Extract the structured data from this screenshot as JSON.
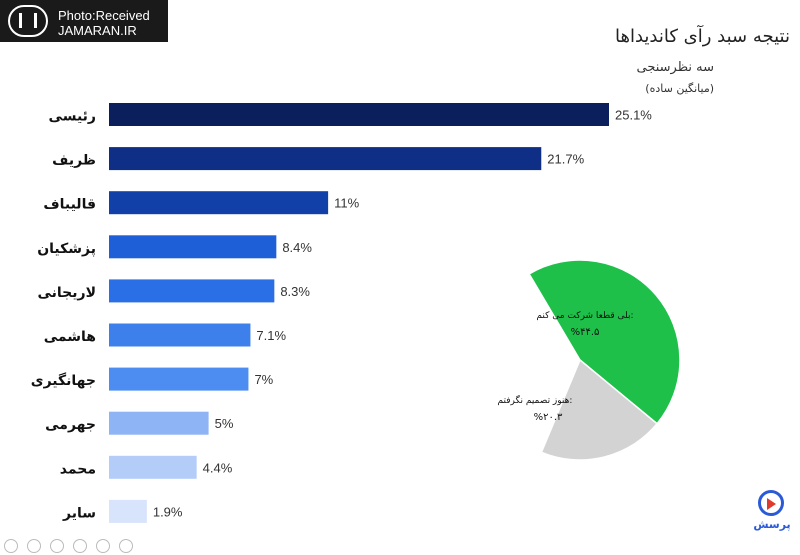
{
  "source_badge": {
    "line1": "Photo:Received",
    "line2": "JAMARAN.IR"
  },
  "brand_text": "پرسش",
  "toolbar_icons": [
    "back-icon",
    "play-icon",
    "forward-icon",
    "copy-icon",
    "expand-icon",
    "options-icon"
  ],
  "chart_data": [
    {
      "type": "bar",
      "orientation": "horizontal",
      "title": "نتیجه سبد رآی کاندیداها",
      "subtitle": "سه نظرسنجی",
      "note": "(میانگین ساده)",
      "categories": [
        "رئیسی",
        "ظریف",
        "قالیباف",
        "پزشکیان",
        "لاریجانی",
        "هاشمی",
        "جهانگیری",
        "جهرمی",
        "محمد",
        "سایر"
      ],
      "values": [
        25.1,
        21.7,
        11,
        8.4,
        8.3,
        7.1,
        7,
        5,
        4.4,
        1.9
      ],
      "value_labels": [
        "25.1%",
        "21.7%",
        "11%",
        "8.4%",
        "8.3%",
        "7.1%",
        "7%",
        "5%",
        "4.4%",
        "1.9%"
      ],
      "colors": [
        "#0a1f5c",
        "#0e2f85",
        "#1140a8",
        "#1e5fd8",
        "#2a6fe6",
        "#3d80ec",
        "#4d8cf0",
        "#8fb4f5",
        "#b3cdf8",
        "#d7e4fb"
      ],
      "xlim": [
        0,
        25.1
      ],
      "grid": false
    },
    {
      "type": "pie",
      "slices": [
        {
          "label": "بلی قطعا شرکت می کنم:",
          "value_label": "%۴۴.۵",
          "value": 44.5,
          "color": "#1ec04a"
        },
        {
          "label": "هنوز تصمیم نگرفتم:",
          "value_label": "%۲۰.۳",
          "value": 20.3,
          "color": "#d3d3d3"
        }
      ]
    }
  ]
}
